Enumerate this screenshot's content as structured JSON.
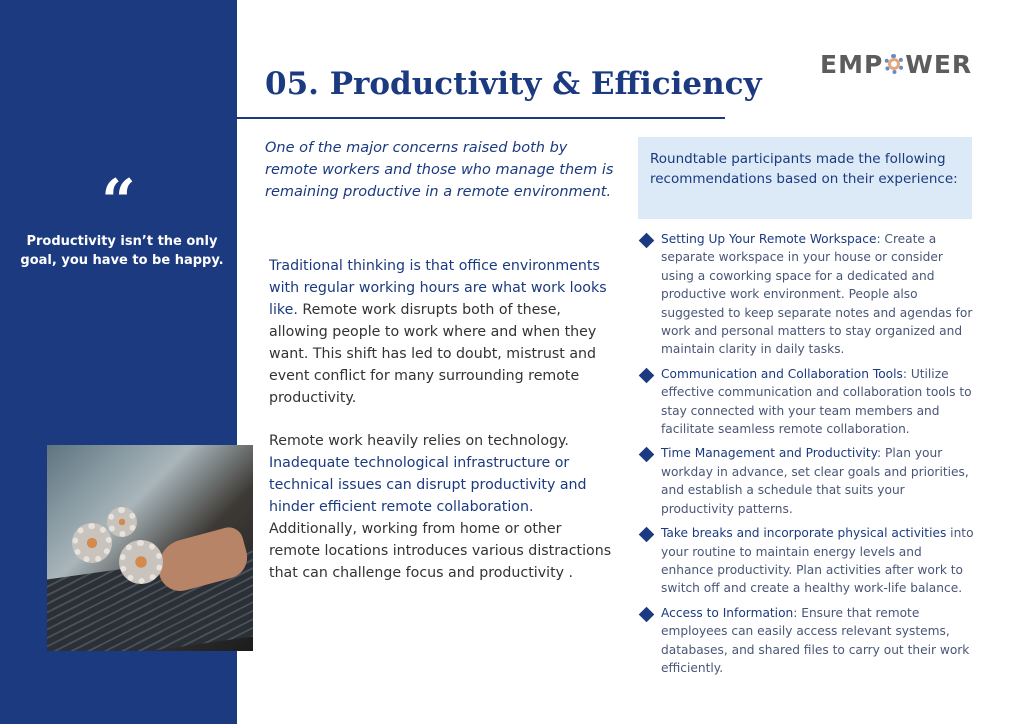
{
  "sidebar": {
    "quote_mark": "“",
    "quote": "Productivity isn’t the only goal, you have to be happy."
  },
  "logo": {
    "pre": "EMP",
    "post": "WER"
  },
  "title": "05. Productivity & Efficiency",
  "lead": "One of the major concerns raised both by remote workers and those who manage them is remaining productive in a remote environment.",
  "para1": {
    "bold": "Traditional thinking is that office environments with regular working hours are what work looks like.",
    "rest": " Remote work disrupts both of these, allowing people to work where and when they want. This shift has led to doubt, mistrust and event conflict for many surrounding remote productivity."
  },
  "para2": {
    "start": "Remote work heavily relies on technology. ",
    "bold": "Inadequate technological infrastructure or technical issues can disrupt productivity and hinder efficient remote collaboration.",
    "rest": " Additionally, working from home or other remote locations introduces various distractions that can challenge focus and productivity ."
  },
  "recommendations_intro": "Roundtable participants made the following recommendations based on their experience:",
  "recommendations": [
    {
      "heading": "Setting Up Your Remote Workspace",
      "text": ": Create a separate workspace in your house or consider using a coworking space for a dedicated and productive work environment. People also suggested to keep separate notes and agendas for work and personal matters to stay organized and maintain clarity in daily tasks."
    },
    {
      "heading": "Communication and Collaboration Tools",
      "text": ": Utilize effective communication and collaboration tools to stay connected with your team members and facilitate seamless remote collaboration."
    },
    {
      "heading": "Time Management and Productivity",
      "text": ": Plan your workday in advance, set clear goals and priorities, and establish a schedule that suits your productivity patterns."
    },
    {
      "heading": "Take breaks and incorporate physical activities",
      "text": " into your routine to maintain energy levels and enhance productivity. Plan activities after work to switch off and create a healthy work-life balance."
    },
    {
      "heading": "Access to Information",
      "text": ": Ensure that remote employees can easily access relevant systems, databases, and shared files to carry out their work efficiently."
    }
  ],
  "colors": {
    "brand_blue": "#1b3a80",
    "callout_bg": "#dce9f7"
  }
}
